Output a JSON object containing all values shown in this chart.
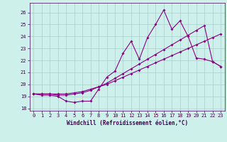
{
  "xlabel": "Windchill (Refroidissement éolien,°C)",
  "bg_color": "#cef0ea",
  "grid_color": "#aacccc",
  "line_color": "#880088",
  "xlim": [
    -0.5,
    23.5
  ],
  "ylim": [
    17.8,
    26.8
  ],
  "yticks": [
    18,
    19,
    20,
    21,
    22,
    23,
    24,
    25,
    26
  ],
  "xticks": [
    0,
    1,
    2,
    3,
    4,
    5,
    6,
    7,
    8,
    9,
    10,
    11,
    12,
    13,
    14,
    15,
    16,
    17,
    18,
    19,
    20,
    21,
    22,
    23
  ],
  "line1_x": [
    0,
    1,
    2,
    3,
    4,
    5,
    6,
    7,
    8,
    9,
    10,
    11,
    12,
    13,
    14,
    15,
    16,
    17,
    18,
    19,
    20,
    21,
    22,
    23
  ],
  "line1_y": [
    19.2,
    19.1,
    19.1,
    19.0,
    18.6,
    18.5,
    18.6,
    18.6,
    19.6,
    20.6,
    21.1,
    22.6,
    23.6,
    22.1,
    23.9,
    25.0,
    26.2,
    24.6,
    25.3,
    24.0,
    22.2,
    22.1,
    21.9,
    21.5
  ],
  "line2_x": [
    0,
    1,
    2,
    3,
    4,
    5,
    6,
    7,
    8,
    9,
    10,
    11,
    12,
    13,
    14,
    15,
    16,
    17,
    18,
    19,
    20,
    21,
    22,
    23
  ],
  "line2_y": [
    19.2,
    19.2,
    19.2,
    19.1,
    19.1,
    19.2,
    19.3,
    19.5,
    19.8,
    20.1,
    20.5,
    20.9,
    21.3,
    21.7,
    22.1,
    22.5,
    22.9,
    23.3,
    23.7,
    24.1,
    24.5,
    24.9,
    21.9,
    21.5
  ],
  "line3_x": [
    0,
    1,
    2,
    3,
    4,
    5,
    6,
    7,
    8,
    9,
    10,
    11,
    12,
    13,
    14,
    15,
    16,
    17,
    18,
    19,
    20,
    21,
    22,
    23
  ],
  "line3_y": [
    19.2,
    19.2,
    19.2,
    19.2,
    19.2,
    19.3,
    19.4,
    19.6,
    19.8,
    20.0,
    20.3,
    20.6,
    20.9,
    21.2,
    21.5,
    21.8,
    22.1,
    22.4,
    22.7,
    23.0,
    23.3,
    23.6,
    23.9,
    24.2
  ]
}
